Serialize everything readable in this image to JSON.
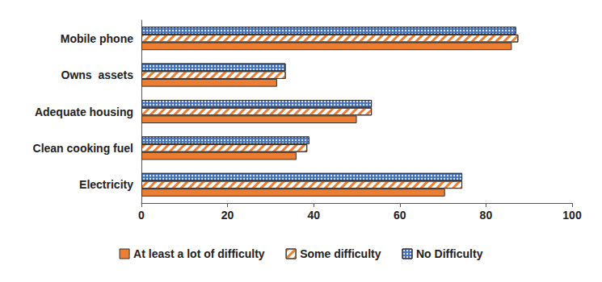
{
  "chart_data": {
    "type": "bar",
    "orientation": "horizontal",
    "categories": [
      "Mobile phone",
      "Owns  assets",
      "Adequate housing",
      "Clean cooking fuel",
      "Electricity"
    ],
    "series": [
      {
        "name": "At least a lot of difficulty",
        "color": "#ed7d31",
        "values": [
          86,
          31.5,
          50,
          36,
          70.5
        ]
      },
      {
        "name": "Some difficulty",
        "color": "#ffffff",
        "values": [
          87.5,
          33.5,
          53.5,
          38.5,
          74.5
        ]
      },
      {
        "name": "No Difficulty",
        "color": "#4472c4",
        "values": [
          87,
          33.5,
          53.5,
          39,
          74.5
        ]
      }
    ],
    "xlim": [
      0,
      100
    ],
    "xticks": [
      0,
      20,
      40,
      60,
      80,
      100
    ],
    "grid": false,
    "legend": "bottom"
  }
}
